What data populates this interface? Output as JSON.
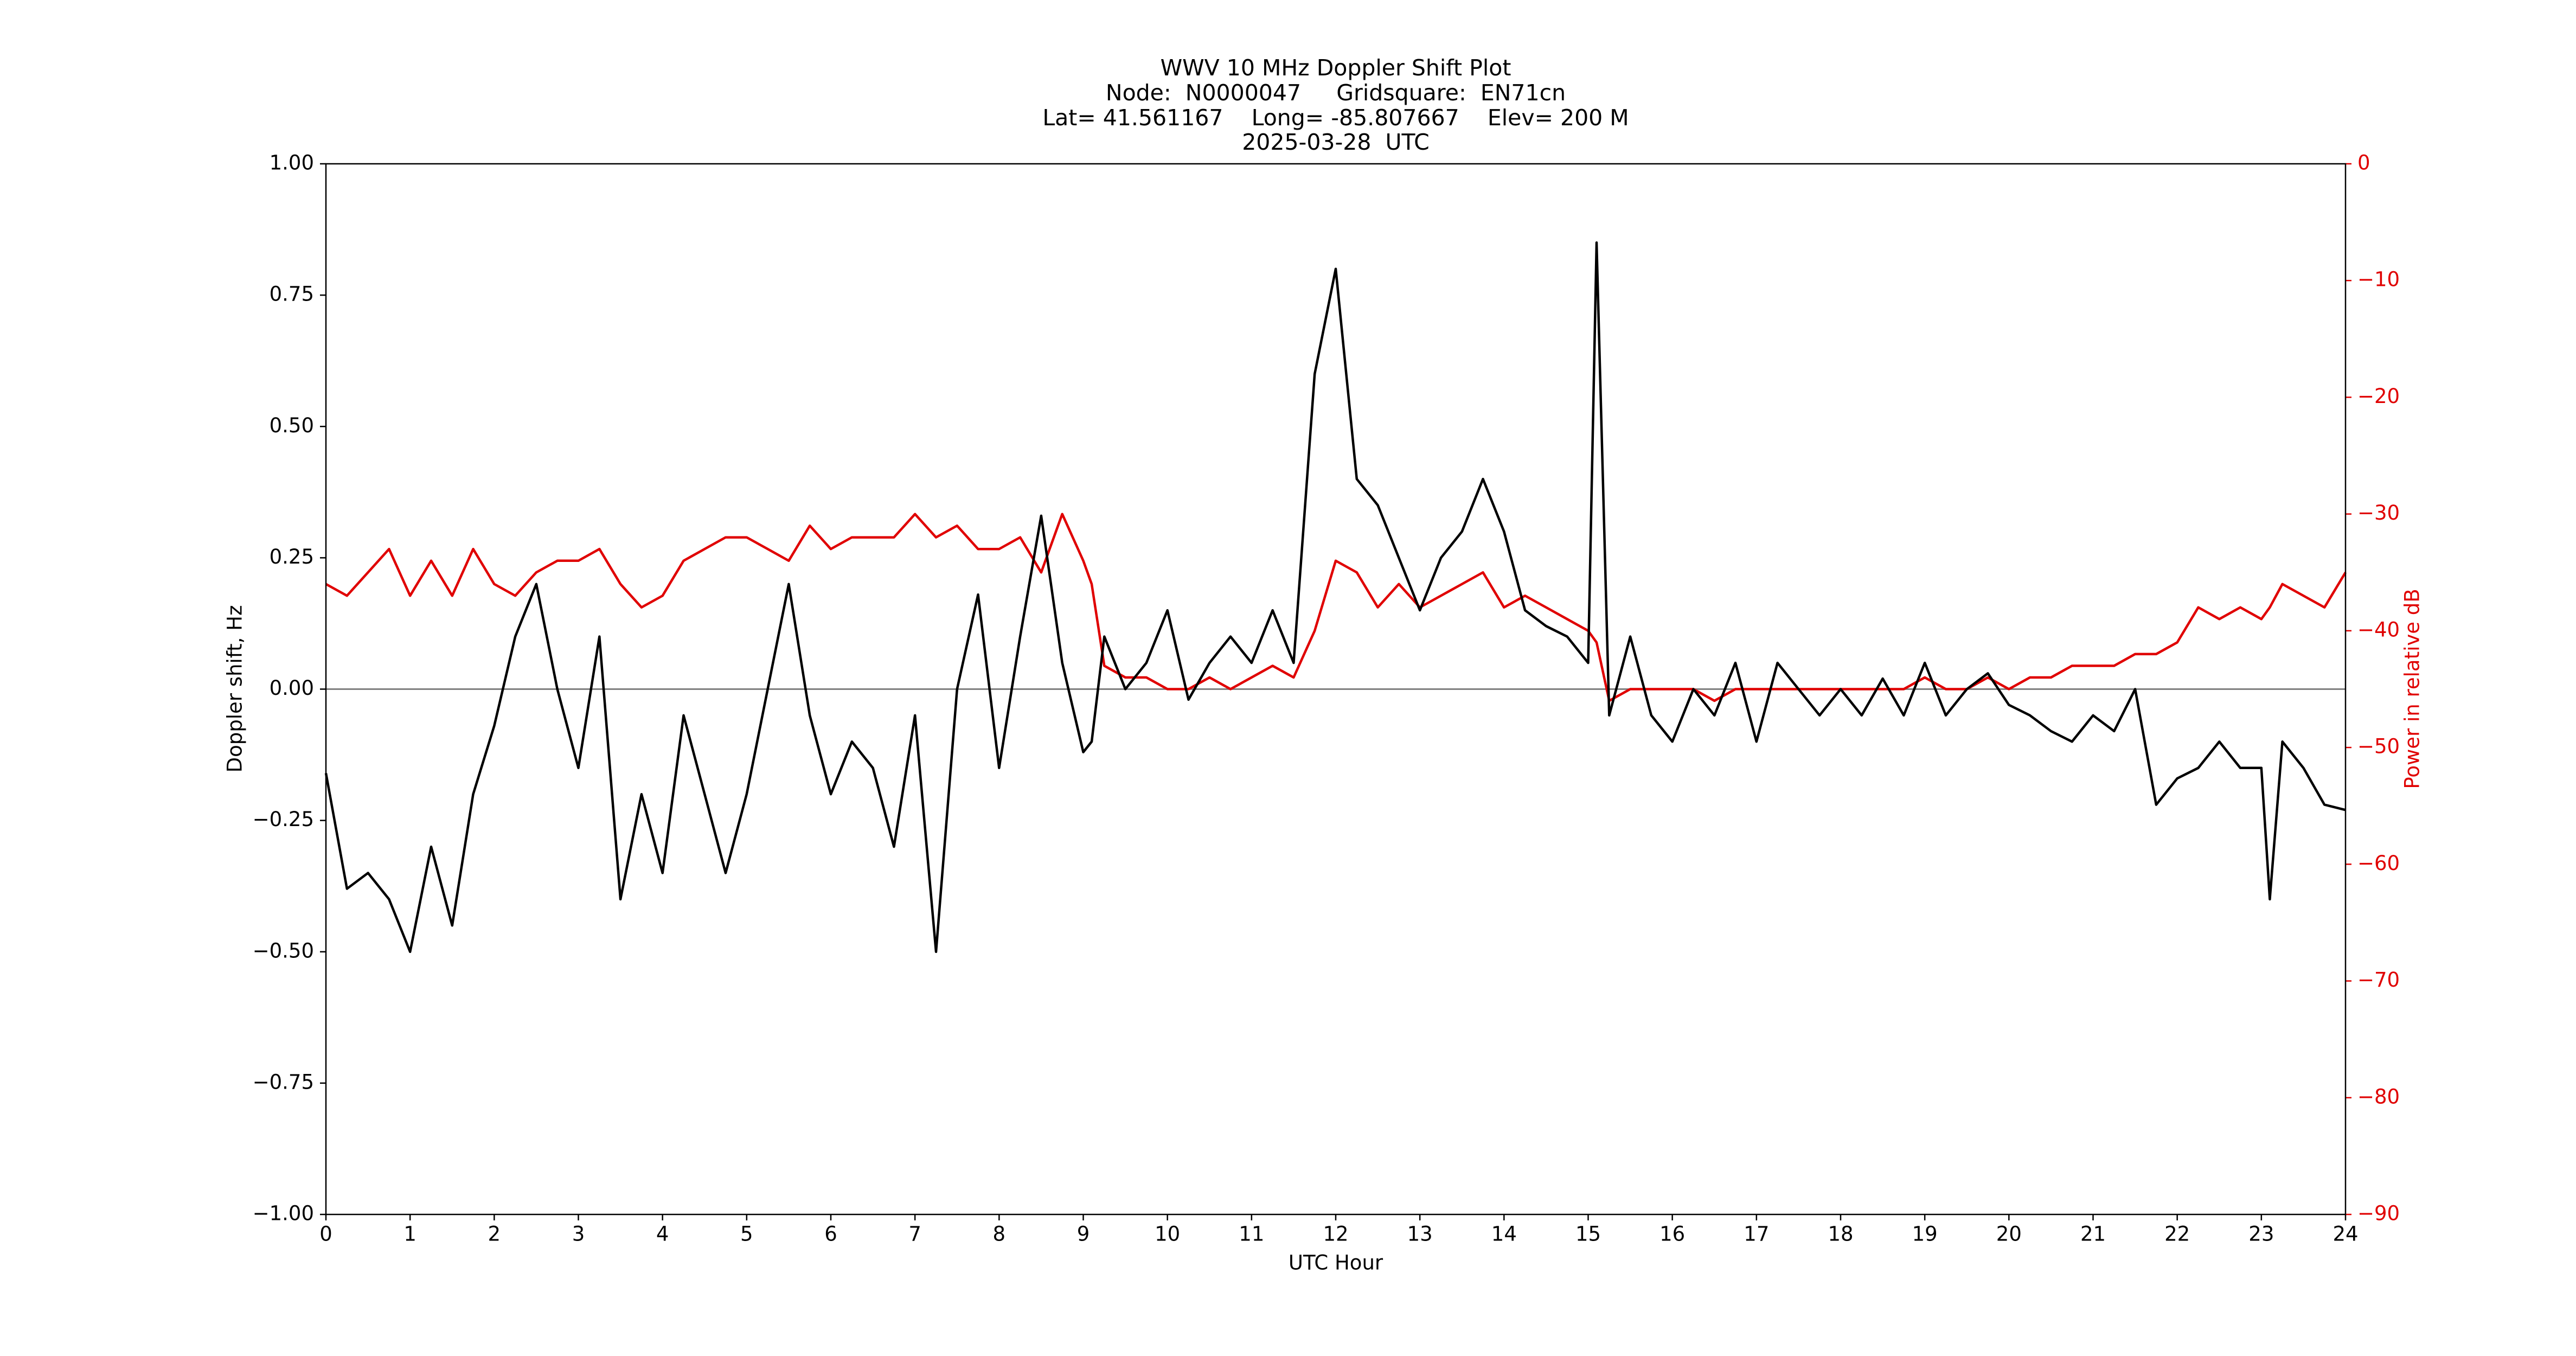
{
  "chart_data": {
    "type": "line",
    "title": "WWV 10 MHz Doppler Shift Plot",
    "subtitle": [
      "Node:  N0000047     Gridsquare:  EN71cn",
      "Lat= 41.561167    Long= -85.807667    Elev= 200 M",
      "2025-03-28  UTC"
    ],
    "x_label": "UTC Hour",
    "y_label": "Doppler shift, Hz",
    "y2_label": "Power in relative dB",
    "y2_color": "#e00000",
    "hline": 0,
    "hline_color": "#808080",
    "x": [
      0,
      0.25,
      0.5,
      0.75,
      1,
      1.25,
      1.5,
      1.75,
      2,
      2.25,
      2.5,
      2.75,
      3,
      3.25,
      3.5,
      3.75,
      4,
      4.25,
      4.5,
      4.75,
      5,
      5.25,
      5.5,
      5.75,
      6,
      6.25,
      6.5,
      6.75,
      7,
      7.25,
      7.5,
      7.75,
      8,
      8.25,
      8.5,
      8.75,
      9,
      9.1,
      9.25,
      9.5,
      9.75,
      10,
      10.25,
      10.5,
      10.75,
      11,
      11.25,
      11.5,
      11.75,
      12,
      12.25,
      12.5,
      12.75,
      13,
      13.25,
      13.5,
      13.75,
      14,
      14.25,
      14.5,
      14.75,
      15,
      15.1,
      15.25,
      15.5,
      15.75,
      16,
      16.25,
      16.5,
      16.75,
      17,
      17.25,
      17.5,
      17.75,
      18,
      18.25,
      18.5,
      18.75,
      19,
      19.25,
      19.5,
      19.75,
      20,
      20.25,
      20.5,
      20.75,
      21,
      21.25,
      21.5,
      21.75,
      22,
      22.25,
      22.5,
      22.75,
      23,
      23.1,
      23.25,
      23.5,
      23.75,
      24
    ],
    "series": [
      {
        "name": "Doppler shift",
        "color": "#000000",
        "axis": "y",
        "values": [
          -0.16,
          -0.38,
          -0.35,
          -0.4,
          -0.5,
          -0.3,
          -0.45,
          -0.2,
          -0.07,
          0.1,
          0.2,
          0.0,
          -0.15,
          0.1,
          -0.4,
          -0.2,
          -0.35,
          -0.05,
          -0.2,
          -0.35,
          -0.2,
          0.0,
          0.2,
          -0.05,
          -0.2,
          -0.1,
          -0.15,
          -0.3,
          -0.05,
          -0.5,
          0.0,
          0.18,
          -0.15,
          0.1,
          0.33,
          0.05,
          -0.12,
          -0.1,
          0.1,
          0.0,
          0.05,
          0.15,
          -0.02,
          0.05,
          0.1,
          0.05,
          0.15,
          0.05,
          0.6,
          0.8,
          0.4,
          0.35,
          0.25,
          0.15,
          0.25,
          0.3,
          0.4,
          0.3,
          0.15,
          0.12,
          0.1,
          0.05,
          0.85,
          -0.05,
          0.1,
          -0.05,
          -0.1,
          0.0,
          -0.05,
          0.05,
          -0.1,
          0.05,
          0.0,
          -0.05,
          0.0,
          -0.05,
          0.02,
          -0.05,
          0.05,
          -0.05,
          0.0,
          0.03,
          -0.03,
          -0.05,
          -0.08,
          -0.1,
          -0.05,
          -0.08,
          0.0,
          -0.22,
          -0.17,
          -0.15,
          -0.1,
          -0.15,
          -0.15,
          -0.4,
          -0.1,
          -0.15,
          -0.22,
          -0.23
        ]
      },
      {
        "name": "Power",
        "color": "#e00000",
        "axis": "y2",
        "values": [
          -36,
          -37,
          -35,
          -33,
          -37,
          -34,
          -37,
          -33,
          -36,
          -37,
          -35,
          -34,
          -34,
          -33,
          -36,
          -38,
          -37,
          -34,
          -33,
          -32,
          -32,
          -33,
          -34,
          -31,
          -33,
          -32,
          -32,
          -32,
          -30,
          -32,
          -31,
          -33,
          -33,
          -32,
          -35,
          -30,
          -34,
          -36,
          -43,
          -44,
          -44,
          -45,
          -45,
          -44,
          -45,
          -44,
          -43,
          -44,
          -40,
          -34,
          -35,
          -38,
          -36,
          -38,
          -37,
          -36,
          -35,
          -38,
          -37,
          -38,
          -39,
          -40,
          -41,
          -46,
          -45,
          -45,
          -45,
          -45,
          -46,
          -45,
          -45,
          -45,
          -45,
          -45,
          -45,
          -45,
          -45,
          -45,
          -44,
          -45,
          -45,
          -44,
          -45,
          -44,
          -44,
          -43,
          -43,
          -43,
          -42,
          -42,
          -41,
          -38,
          -39,
          -38,
          -39,
          -38,
          -36,
          -37,
          -38,
          -35
        ]
      }
    ],
    "xlim": [
      0,
      24
    ],
    "xticks": [
      0,
      1,
      2,
      3,
      4,
      5,
      6,
      7,
      8,
      9,
      10,
      11,
      12,
      13,
      14,
      15,
      16,
      17,
      18,
      19,
      20,
      21,
      22,
      23,
      24
    ],
    "ylim": [
      -1,
      1
    ],
    "yticks": [
      {
        "value": -1,
        "label": "−1.00"
      },
      {
        "value": -0.75,
        "label": "−0.75"
      },
      {
        "value": -0.5,
        "label": "−0.50"
      },
      {
        "value": -0.25,
        "label": "−0.25"
      },
      {
        "value": 0,
        "label": "0.00"
      },
      {
        "value": 0.25,
        "label": "0.25"
      },
      {
        "value": 0.5,
        "label": "0.50"
      },
      {
        "value": 0.75,
        "label": "0.75"
      },
      {
        "value": 1,
        "label": "1.00"
      }
    ],
    "y2lim": [
      -90,
      0
    ],
    "y2ticks": [
      {
        "value": -90,
        "label": "−90"
      },
      {
        "value": -80,
        "label": "−80"
      },
      {
        "value": -70,
        "label": "−70"
      },
      {
        "value": -60,
        "label": "−60"
      },
      {
        "value": -50,
        "label": "−50"
      },
      {
        "value": -40,
        "label": "−40"
      },
      {
        "value": -30,
        "label": "−30"
      },
      {
        "value": -20,
        "label": "−20"
      },
      {
        "value": -10,
        "label": "−10"
      },
      0
    ],
    "grid": false
  }
}
